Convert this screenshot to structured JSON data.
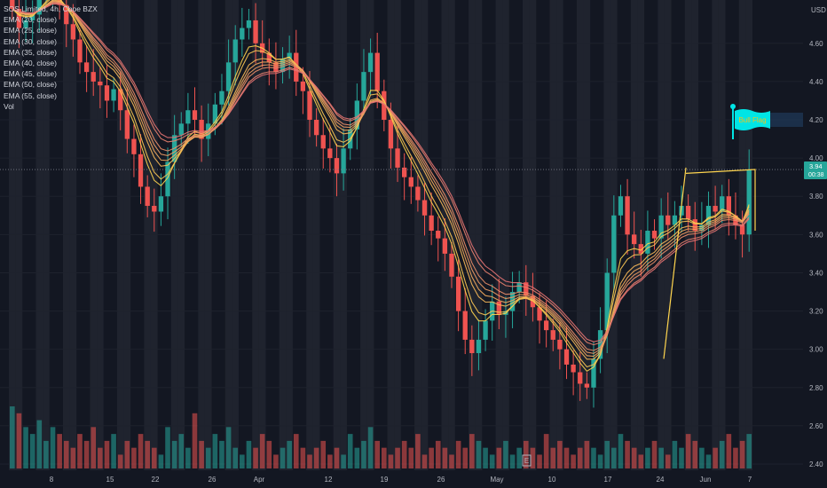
{
  "chart_data": {
    "type": "candlestick",
    "symbol": "SOS Limited, 4h, Cboe BZX",
    "currency_label": "USD",
    "legend": [
      "SOS Limited, 4h, Cboe BZX",
      "EMA (20, close)",
      "EMA (25, close)",
      "EMA (30, close)",
      "EMA (35, close)",
      "EMA (40, close)",
      "EMA (45, close)",
      "EMA (50, close)",
      "EMA (55, close)",
      "Vol"
    ],
    "y_ticks": [
      "4.60",
      "4.40",
      "4.20",
      "4.00",
      "3.80",
      "3.60",
      "3.40",
      "3.20",
      "3.00",
      "2.80",
      "2.60",
      "2.40"
    ],
    "x_ticks": [
      "8",
      "15",
      "22",
      "26",
      "Apr",
      "12",
      "19",
      "26",
      "May",
      "10",
      "17",
      "24",
      "Jun",
      "7"
    ],
    "price_range": [
      2.35,
      4.75
    ],
    "last_price": {
      "value": "3.94",
      "countdown": "00:38"
    },
    "annotation": {
      "text": "Bull Flag",
      "price": 4.2
    },
    "earnings_marker": "E",
    "closes": [
      4.78,
      4.68,
      4.72,
      4.75,
      4.85,
      4.9,
      4.92,
      4.8,
      4.7,
      4.62,
      4.5,
      4.45,
      4.4,
      4.38,
      4.3,
      4.36,
      4.25,
      4.1,
      4.02,
      3.85,
      3.75,
      3.72,
      3.8,
      3.98,
      4.12,
      4.18,
      4.25,
      4.2,
      4.1,
      4.18,
      4.28,
      4.35,
      4.5,
      4.62,
      4.68,
      4.72,
      4.6,
      4.55,
      4.5,
      4.45,
      4.52,
      4.55,
      4.4,
      4.35,
      4.2,
      4.12,
      4.05,
      4.0,
      3.92,
      4.05,
      4.15,
      4.3,
      4.45,
      4.55,
      4.35,
      4.2,
      4.05,
      3.95,
      3.9,
      3.85,
      3.78,
      3.7,
      3.62,
      3.58,
      3.5,
      3.38,
      3.2,
      3.05,
      2.98,
      3.05,
      3.15,
      3.25,
      3.18,
      3.2,
      3.3,
      3.35,
      3.28,
      3.22,
      3.15,
      3.1,
      3.05,
      3.0,
      2.92,
      2.88,
      2.82,
      2.8,
      2.95,
      3.1,
      3.4,
      3.7,
      3.8,
      3.6,
      3.55,
      3.5,
      3.62,
      3.58,
      3.7,
      3.65,
      3.7,
      3.75,
      3.68,
      3.62,
      3.65,
      3.75,
      3.72,
      3.8,
      3.7,
      3.65,
      3.6,
      3.94
    ],
    "volume": [
      9,
      8,
      6,
      5,
      7,
      4,
      6,
      5,
      4,
      3,
      5,
      4,
      6,
      3,
      4,
      5,
      2,
      4,
      3,
      5,
      4,
      3,
      2,
      6,
      4,
      5,
      3,
      8,
      4,
      3,
      5,
      4,
      6,
      3,
      2,
      4,
      3,
      5,
      4,
      2,
      3,
      4,
      5,
      3,
      2,
      3,
      4,
      2,
      3,
      2,
      5,
      3,
      4,
      6,
      4,
      3,
      2,
      3,
      4,
      3,
      5,
      2,
      3,
      4,
      3,
      2,
      4,
      3,
      5,
      4,
      3,
      2,
      3,
      4,
      2,
      3,
      4,
      3,
      2,
      5,
      3,
      4,
      3,
      2,
      3,
      4,
      3,
      2,
      4,
      3,
      5,
      4,
      3,
      2,
      3,
      4,
      3,
      2,
      4,
      3,
      5,
      4,
      3,
      2,
      3,
      4,
      5,
      3,
      4,
      5
    ]
  },
  "colors": {
    "background": "#131722",
    "band": "#2a2e39",
    "grid": "#1e222d",
    "up": "#26a69a",
    "down": "#ef5350",
    "ema_fast": "#ffd54f",
    "ema_slow": "#e57373",
    "flag": "#00e5e5",
    "flag_text": "#f2c21b",
    "price_line": "#787b86"
  }
}
